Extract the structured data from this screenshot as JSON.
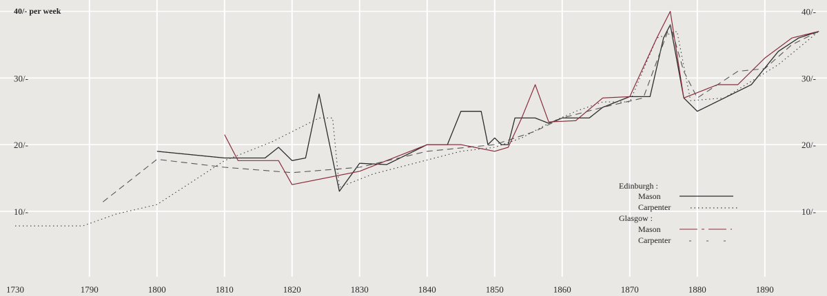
{
  "chart_data": {
    "type": "line",
    "x_ticks": [
      "1730",
      "1790",
      "1800",
      "1810",
      "1820",
      "1830",
      "1840",
      "1850",
      "1860",
      "1870",
      "1880",
      "1890"
    ],
    "y_ticks_left": [
      "10/-",
      "20/-",
      "30/-"
    ],
    "y_ticks_right": [
      "10/-",
      "20/-",
      "30/-",
      "40/-"
    ],
    "y_unit_label": "40/- per week",
    "x_range": [
      1779,
      1899
    ],
    "y_range": [
      -2,
      42
    ],
    "grid": true,
    "legend": {
      "position": "bottom-right",
      "groups": [
        {
          "title": "Edinburgh :",
          "items": [
            {
              "label": "Mason",
              "series": "edinburgh_mason"
            },
            {
              "label": "Carpenter",
              "series": "edinburgh_carpenter"
            }
          ]
        },
        {
          "title": "Glasgow :",
          "items": [
            {
              "label": "Mason",
              "series": "glasgow_mason"
            },
            {
              "label": "Carpenter",
              "series": "glasgow_carpenter"
            }
          ]
        }
      ]
    },
    "series": [
      {
        "key": "edinburgh_mason",
        "color": "#2b2b2b",
        "dash": "1 0",
        "width": 1.3,
        "points": [
          [
            1800,
            19
          ],
          [
            1810,
            18
          ],
          [
            1812,
            18
          ],
          [
            1816,
            18
          ],
          [
            1818,
            19.6
          ],
          [
            1820,
            17.6
          ],
          [
            1822,
            18
          ],
          [
            1824,
            27.6
          ],
          [
            1827,
            13
          ],
          [
            1830,
            17.2
          ],
          [
            1834,
            17
          ],
          [
            1836,
            18
          ],
          [
            1840,
            20
          ],
          [
            1843,
            20
          ],
          [
            1845,
            25
          ],
          [
            1848,
            25
          ],
          [
            1849,
            20
          ],
          [
            1850,
            21
          ],
          [
            1851,
            20
          ],
          [
            1852,
            20
          ],
          [
            1853,
            24
          ],
          [
            1856,
            24
          ],
          [
            1858,
            23.2
          ],
          [
            1860,
            24
          ],
          [
            1864,
            24
          ],
          [
            1866,
            25.6
          ],
          [
            1870,
            27.2
          ],
          [
            1873,
            27.2
          ],
          [
            1875,
            36
          ],
          [
            1876,
            38
          ],
          [
            1878,
            27
          ],
          [
            1880,
            25
          ],
          [
            1888,
            29
          ],
          [
            1892,
            34
          ],
          [
            1895,
            36
          ],
          [
            1898,
            37
          ]
        ]
      },
      {
        "key": "edinburgh_carpenter",
        "color": "#3a3a3a",
        "dash": "1.5 4",
        "width": 1.1,
        "points": [
          [
            1779,
            7.8
          ],
          [
            1789,
            7.8
          ],
          [
            1794,
            9.6
          ],
          [
            1800,
            11
          ],
          [
            1810,
            17.6
          ],
          [
            1817,
            20.4
          ],
          [
            1824,
            24
          ],
          [
            1826,
            24
          ],
          [
            1827,
            13.6
          ],
          [
            1832,
            15.6
          ],
          [
            1845,
            19
          ],
          [
            1850,
            19.6
          ],
          [
            1854,
            21
          ],
          [
            1858,
            23.2
          ],
          [
            1862,
            25
          ],
          [
            1866,
            26.4
          ],
          [
            1870,
            26.4
          ],
          [
            1874,
            36
          ],
          [
            1877,
            37
          ],
          [
            1879,
            26.6
          ],
          [
            1884,
            27
          ],
          [
            1892,
            32
          ],
          [
            1898,
            37
          ]
        ]
      },
      {
        "key": "glasgow_mason",
        "color": "#8a2c3a",
        "dash": "1 0",
        "width": 1.2,
        "points": [
          [
            1810,
            21.5
          ],
          [
            1812,
            17.6
          ],
          [
            1818,
            17.6
          ],
          [
            1820,
            14
          ],
          [
            1830,
            16
          ],
          [
            1840,
            20
          ],
          [
            1845,
            20
          ],
          [
            1850,
            19
          ],
          [
            1852,
            19.6
          ],
          [
            1854,
            24
          ],
          [
            1856,
            29
          ],
          [
            1858,
            23.4
          ],
          [
            1862,
            23.6
          ],
          [
            1866,
            27
          ],
          [
            1870,
            27.2
          ],
          [
            1874,
            36
          ],
          [
            1876,
            40
          ],
          [
            1878,
            27
          ],
          [
            1883,
            29
          ],
          [
            1886,
            29
          ],
          [
            1890,
            33
          ],
          [
            1894,
            36
          ],
          [
            1898,
            37
          ]
        ]
      },
      {
        "key": "glasgow_carpenter",
        "color": "#555555",
        "dash": "9 6",
        "width": 1.1,
        "points": [
          [
            1792,
            11.4
          ],
          [
            1800,
            17.8
          ],
          [
            1810,
            16.6
          ],
          [
            1820,
            15.8
          ],
          [
            1830,
            16.6
          ],
          [
            1840,
            19
          ],
          [
            1850,
            20
          ],
          [
            1856,
            22
          ],
          [
            1860,
            24
          ],
          [
            1866,
            25.6
          ],
          [
            1872,
            27
          ],
          [
            1876,
            38
          ],
          [
            1878,
            31
          ],
          [
            1880,
            27
          ],
          [
            1886,
            31
          ],
          [
            1890,
            31.4
          ],
          [
            1894,
            35
          ],
          [
            1898,
            37
          ]
        ]
      }
    ]
  }
}
